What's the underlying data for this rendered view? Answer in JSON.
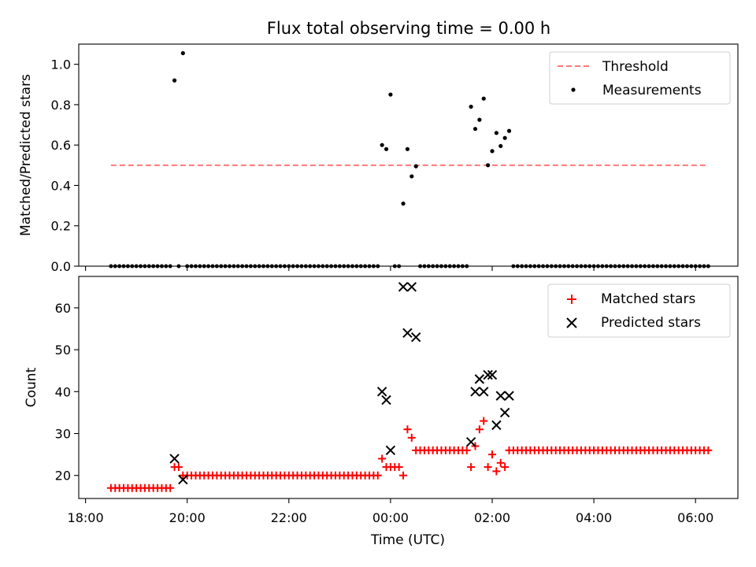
{
  "title": "Flux total observing time = 0.00 h",
  "colors": {
    "threshold": "#ff7777",
    "measurement": "#000000",
    "matched": "#ff0000",
    "predicted": "#000000"
  },
  "chart_data": [
    {
      "type": "scatter",
      "ylabel": "Matched/Predicted stars",
      "xlabel": "",
      "ylim": [
        0,
        1.1
      ],
      "xlim": [
        "17:52",
        "06:50"
      ],
      "yticks": [
        "0.0",
        "0.2",
        "0.4",
        "0.6",
        "0.8",
        "1.0"
      ],
      "yticks_values": [
        0,
        0.2,
        0.4,
        0.6,
        0.8,
        1.0
      ],
      "legend": {
        "position": "top-right",
        "entries": [
          "Threshold",
          "Measurements"
        ]
      },
      "threshold": {
        "name": "Threshold",
        "value": 0.5,
        "x_start": "18:30",
        "x_end": "06:15",
        "style": "dashed"
      },
      "series": [
        {
          "name": "Measurements",
          "marker": "dot",
          "points": [
            [
              "19:45",
              0.92
            ],
            [
              "19:55",
              1.055
            ],
            [
              "23:50",
              0.6
            ],
            [
              "23:55",
              0.58
            ],
            [
              "00:00",
              0.85
            ],
            [
              "00:15",
              0.31
            ],
            [
              "00:20",
              0.58
            ],
            [
              "00:25",
              0.445
            ],
            [
              "00:30",
              0.495
            ],
            [
              "01:35",
              0.79
            ],
            [
              "01:40",
              0.68
            ],
            [
              "01:45",
              0.725
            ],
            [
              "01:50",
              0.83
            ],
            [
              "01:55",
              0.5
            ],
            [
              "02:00",
              0.57
            ],
            [
              "02:05",
              0.66
            ],
            [
              "02:10",
              0.595
            ],
            [
              "02:15",
              0.635
            ],
            [
              "02:20",
              0.67
            ]
          ],
          "zero_segments": [
            {
              "start": "18:30",
              "end": "19:40",
              "step_minutes": 5
            },
            {
              "start": "19:50",
              "end": "19:50",
              "step_minutes": 5
            },
            {
              "start": "20:00",
              "end": "23:45",
              "step_minutes": 5
            },
            {
              "start": "00:05",
              "end": "00:10",
              "step_minutes": 5
            },
            {
              "start": "00:35",
              "end": "01:30",
              "step_minutes": 5
            },
            {
              "start": "02:25",
              "end": "06:15",
              "step_minutes": 5
            }
          ]
        }
      ]
    },
    {
      "type": "scatter",
      "ylabel": "Count",
      "xlabel": "Time (UTC)",
      "ylim": [
        14.5,
        67.5
      ],
      "xlim": [
        "17:52",
        "06:50"
      ],
      "yticks": [
        "20",
        "30",
        "40",
        "50",
        "60"
      ],
      "yticks_values": [
        20,
        30,
        40,
        50,
        60
      ],
      "xticks": [
        "18:00",
        "20:00",
        "22:00",
        "00:00",
        "02:00",
        "04:00",
        "06:00"
      ],
      "legend": {
        "position": "top-right",
        "entries": [
          "Matched stars",
          "Predicted stars"
        ]
      },
      "series": [
        {
          "name": "Matched stars",
          "marker": "plus",
          "points": [
            [
              "19:45",
              22
            ],
            [
              "19:50",
              22
            ],
            [
              "23:50",
              24
            ],
            [
              "23:55",
              22
            ],
            [
              "00:00",
              22
            ],
            [
              "00:05",
              22
            ],
            [
              "00:10",
              22
            ],
            [
              "00:15",
              20
            ],
            [
              "00:20",
              31
            ],
            [
              "00:25",
              29
            ],
            [
              "01:35",
              22
            ],
            [
              "01:40",
              27
            ],
            [
              "01:45",
              31
            ],
            [
              "01:50",
              33
            ],
            [
              "01:55",
              22
            ],
            [
              "02:00",
              25
            ],
            [
              "02:05",
              21
            ],
            [
              "02:10",
              23
            ],
            [
              "02:15",
              22
            ]
          ],
          "constant_segments": [
            {
              "start": "18:30",
              "end": "19:40",
              "value": 17,
              "step_minutes": 5
            },
            {
              "start": "19:55",
              "end": "23:45",
              "value": 20,
              "step_minutes": 5
            },
            {
              "start": "00:30",
              "end": "01:30",
              "value": 26,
              "step_minutes": 5
            },
            {
              "start": "02:20",
              "end": "06:15",
              "value": 26,
              "step_minutes": 5
            }
          ]
        },
        {
          "name": "Predicted stars",
          "marker": "x",
          "points": [
            [
              "19:45",
              24
            ],
            [
              "19:55",
              19
            ],
            [
              "23:50",
              40
            ],
            [
              "23:55",
              38
            ],
            [
              "00:00",
              26
            ],
            [
              "00:15",
              65
            ],
            [
              "00:25",
              65
            ],
            [
              "00:20",
              54
            ],
            [
              "00:30",
              53
            ],
            [
              "01:35",
              28
            ],
            [
              "01:40",
              40
            ],
            [
              "01:45",
              43
            ],
            [
              "01:50",
              40
            ],
            [
              "01:55",
              44
            ],
            [
              "02:00",
              44
            ],
            [
              "02:05",
              32
            ],
            [
              "02:10",
              39
            ],
            [
              "02:15",
              35
            ],
            [
              "02:20",
              39
            ]
          ]
        }
      ]
    }
  ]
}
